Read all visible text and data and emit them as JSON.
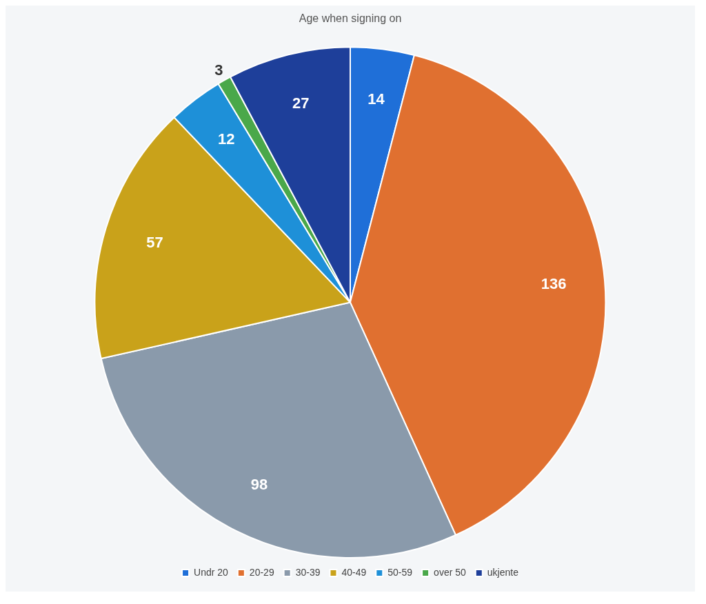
{
  "chart_data": {
    "type": "pie",
    "title": "Age when signing on",
    "categories": [
      "Undr 20",
      "20-29",
      "30-39",
      "40-49",
      "50-59",
      "over 50",
      "ukjente"
    ],
    "values": [
      14,
      136,
      98,
      57,
      12,
      3,
      27
    ],
    "colors": [
      "#1f6fd8",
      "#e07030",
      "#8a9aab",
      "#c9a21a",
      "#1e90d8",
      "#4aa84a",
      "#1e3f9a"
    ],
    "data_labels": true,
    "legend": "bottom"
  }
}
